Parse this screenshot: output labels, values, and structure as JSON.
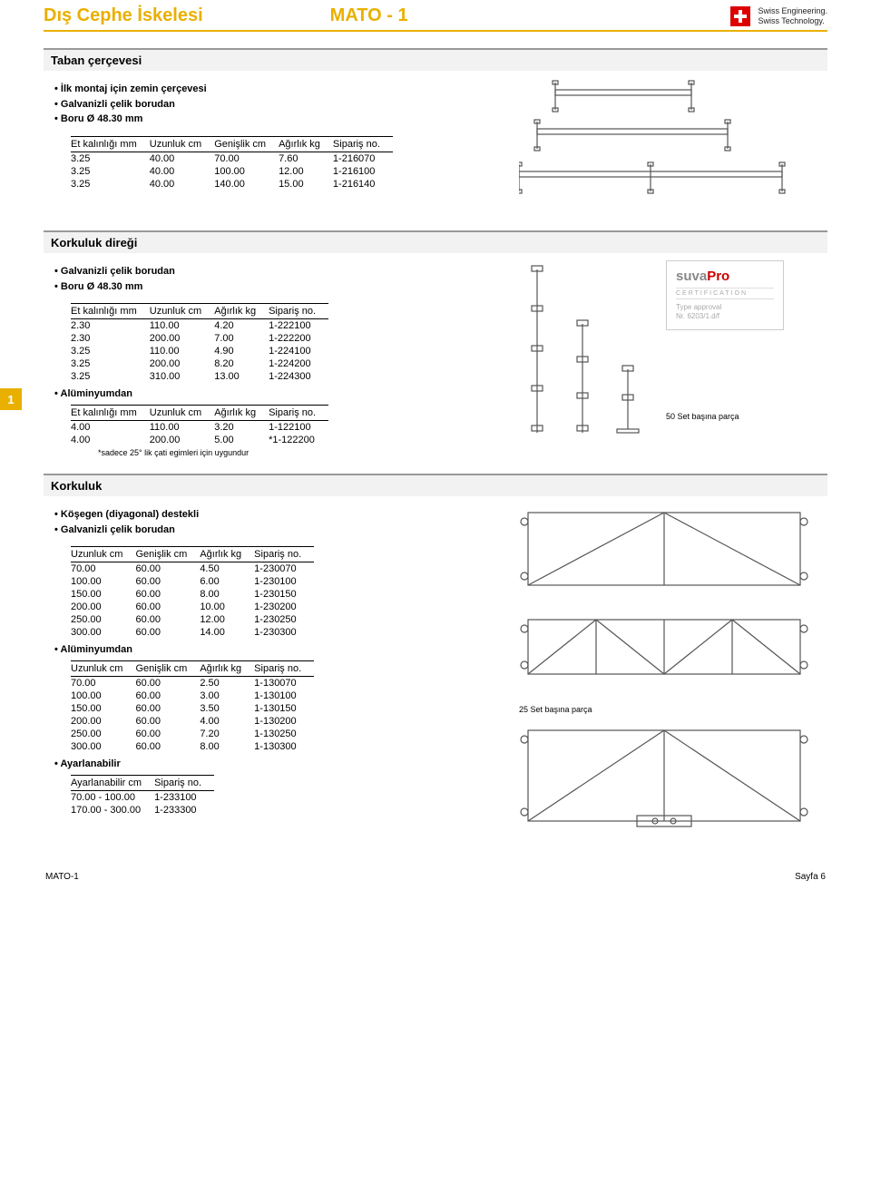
{
  "header": {
    "title_left": "Dış Cephe İskelesi",
    "title_right": "MATO - 1",
    "swiss_line1": "Swiss Engineering.",
    "swiss_line2": "Swiss Technology."
  },
  "page_side_number": "1",
  "colors": {
    "accent": "#e9b000",
    "heading_bg": "#f2f2f2",
    "rule": "#999999",
    "text": "#000000",
    "swiss_red": "#d00000"
  },
  "sections": {
    "taban": {
      "heading": "Taban çerçevesi",
      "bullets": [
        "İlk montaj için zemin çerçevesi",
        "Galvanizli çelik borudan",
        "Boru Ø 48.30 mm"
      ],
      "table": {
        "columns": [
          "Et kalınlığı mm",
          "Uzunluk cm",
          "Genişlik cm",
          "Ağırlık kg",
          "Sipariş no."
        ],
        "rows": [
          [
            "3.25",
            "40.00",
            "70.00",
            "7.60",
            "1-216070"
          ],
          [
            "3.25",
            "40.00",
            "100.00",
            "12.00",
            "1-216100"
          ],
          [
            "3.25",
            "40.00",
            "140.00",
            "15.00",
            "1-216140"
          ]
        ]
      }
    },
    "diregi": {
      "heading": "Korkuluk direği",
      "bullets": [
        "Galvanizli çelik borudan",
        "Boru Ø 48.30 mm"
      ],
      "table": {
        "columns": [
          "Et kalınlığı mm",
          "Uzunluk cm",
          "Ağırlık kg",
          "Sipariş no."
        ],
        "rows": [
          [
            "2.30",
            "110.00",
            "4.20",
            "1-222100"
          ],
          [
            "2.30",
            "200.00",
            "7.00",
            "1-222200"
          ],
          [
            "3.25",
            "110.00",
            "4.90",
            "1-224100"
          ],
          [
            "3.25",
            "200.00",
            "8.20",
            "1-224200"
          ],
          [
            "3.25",
            "310.00",
            "13.00",
            "1-224300"
          ]
        ]
      },
      "alu_heading": "Alüminyumdan",
      "alu_table": {
        "columns": [
          "Et kalınlığı mm",
          "Uzunluk cm",
          "Ağırlık kg",
          "Sipariş no."
        ],
        "rows": [
          [
            "4.00",
            "110.00",
            "3.20",
            "1-122100"
          ],
          [
            "4.00",
            "200.00",
            "5.00",
            "*1-122200"
          ]
        ]
      },
      "alu_footnote": "*sadece 25° lik çati egimleri için uygundur",
      "suva": {
        "brand_a": "suva",
        "brand_b": "Pro",
        "cert": "CERTIFICATION",
        "type1": "Type approval",
        "type2": "Nr. 6203/1.d/f"
      },
      "set_note": "50 Set başına parça"
    },
    "korkuluk": {
      "heading": "Korkuluk",
      "bullets": [
        "Köşegen (diyagonal) destekli",
        "Galvanizli çelik borudan"
      ],
      "table": {
        "columns": [
          "Uzunluk cm",
          "Genişlik cm",
          "Ağırlık kg",
          "Sipariş no."
        ],
        "rows": [
          [
            "70.00",
            "60.00",
            "4.50",
            "1-230070"
          ],
          [
            "100.00",
            "60.00",
            "6.00",
            "1-230100"
          ],
          [
            "150.00",
            "60.00",
            "8.00",
            "1-230150"
          ],
          [
            "200.00",
            "60.00",
            "10.00",
            "1-230200"
          ],
          [
            "250.00",
            "60.00",
            "12.00",
            "1-230250"
          ],
          [
            "300.00",
            "60.00",
            "14.00",
            "1-230300"
          ]
        ]
      },
      "alu_heading": "Alüminyumdan",
      "alu_table": {
        "columns": [
          "Uzunluk cm",
          "Genişlik cm",
          "Ağırlık kg",
          "Sipariş no."
        ],
        "rows": [
          [
            "70.00",
            "60.00",
            "2.50",
            "1-130070"
          ],
          [
            "100.00",
            "60.00",
            "3.00",
            "1-130100"
          ],
          [
            "150.00",
            "60.00",
            "3.50",
            "1-130150"
          ],
          [
            "200.00",
            "60.00",
            "4.00",
            "1-130200"
          ],
          [
            "250.00",
            "60.00",
            "7.20",
            "1-130250"
          ],
          [
            "300.00",
            "60.00",
            "8.00",
            "1-130300"
          ]
        ]
      },
      "alu_set_note": "25 Set başına parça",
      "adj_heading": "Ayarlanabilir",
      "adj_table": {
        "columns": [
          "Ayarlanabilir cm",
          "Sipariş no."
        ],
        "rows": [
          [
            "70.00 - 100.00",
            "1-233100"
          ],
          [
            "170.00 - 300.00",
            "1-233300"
          ]
        ]
      }
    }
  },
  "footer": {
    "left": "MATO-1",
    "right": "Sayfa 6"
  },
  "diagram_style": {
    "stroke": "#555555",
    "stroke_width": 1.2,
    "fill": "none",
    "bg": "#ffffff"
  }
}
